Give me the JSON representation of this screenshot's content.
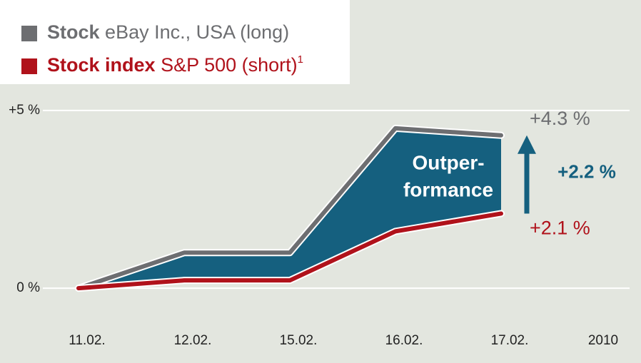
{
  "chart_data": {
    "type": "line",
    "categories": [
      "11.02.",
      "12.02.",
      "15.02.",
      "16.02.",
      "17.02."
    ],
    "year": "2010",
    "series": [
      {
        "label": "Stock",
        "name": "eBay Inc., USA (long)",
        "color": "#6d6e71",
        "values": [
          0,
          1.0,
          1.0,
          4.5,
          4.3
        ],
        "value_labels": [
          null,
          null,
          null,
          null,
          "+4.3 %"
        ]
      },
      {
        "label": "Stock index",
        "name": "S&P 500 (short)",
        "footnote_mark": "1",
        "color": "#b0121b",
        "values": [
          0,
          0.22,
          0.22,
          1.6,
          2.1
        ],
        "value_labels": [
          null,
          null,
          null,
          null,
          "+2.1 %"
        ]
      }
    ],
    "area_color": "#15607f",
    "area_label": [
      "Outper-",
      "formance"
    ],
    "difference_label": "+2.2 %",
    "ylim": [
      -0.9,
      5.6
    ],
    "yticks": [
      {
        "value": 0,
        "label": "0 %"
      },
      {
        "value": 5,
        "label": "+5 %"
      }
    ],
    "grid": true
  }
}
